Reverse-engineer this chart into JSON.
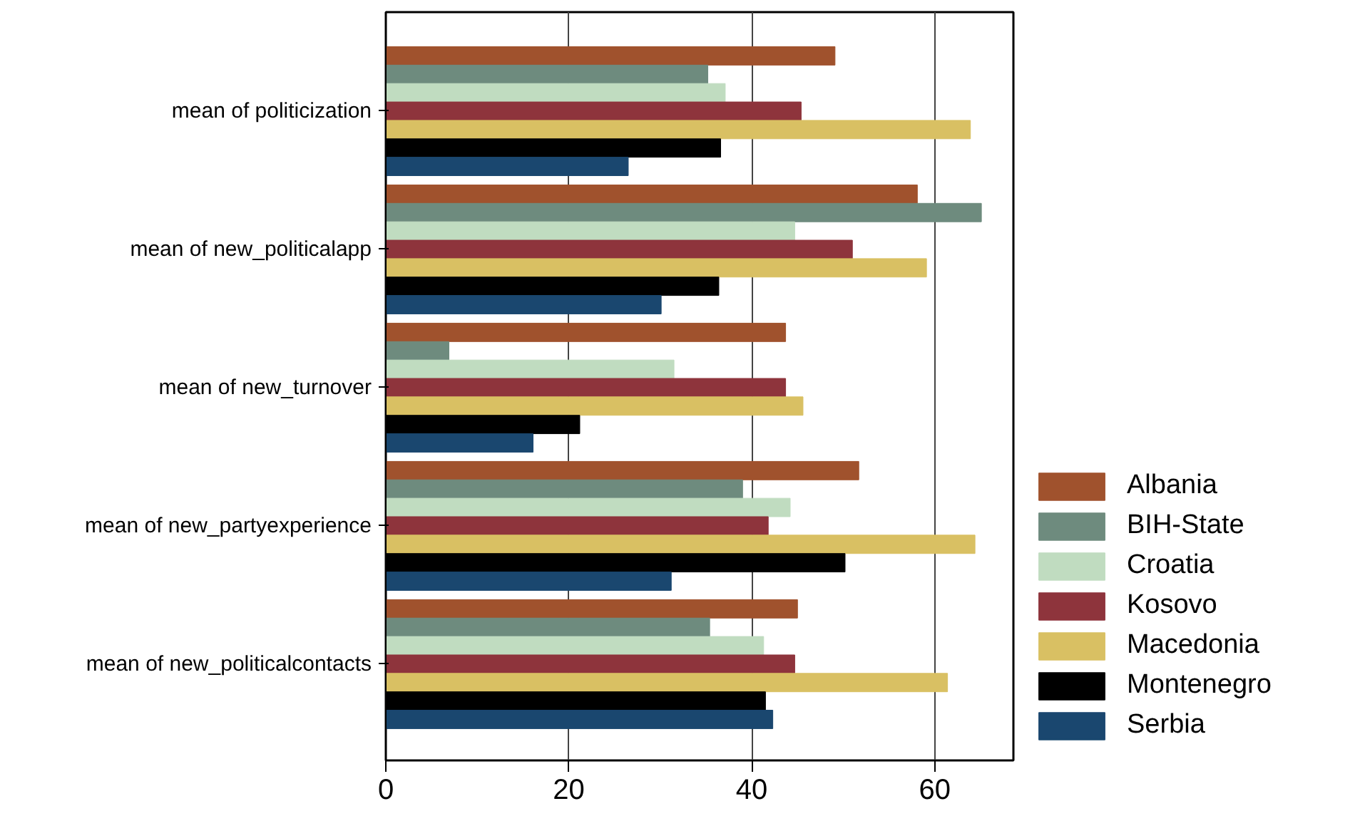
{
  "chart_data": {
    "type": "bar",
    "orientation": "horizontal",
    "categories": [
      "mean of politicization",
      "mean of new_politicalapp",
      "mean of new_turnover",
      "mean of new_partyexperience",
      "mean of new_politicalcontacts"
    ],
    "series": [
      {
        "name": "Albania",
        "color": "#a0522d",
        "values": [
          49.1,
          58.1,
          43.7,
          51.7,
          45.0
        ]
      },
      {
        "name": "BIH-State",
        "color": "#6e8b7e",
        "values": [
          35.2,
          65.1,
          6.9,
          39.0,
          35.4
        ]
      },
      {
        "name": "Croatia",
        "color": "#c0dcc0",
        "values": [
          37.1,
          44.7,
          31.5,
          44.2,
          41.3
        ]
      },
      {
        "name": "Kosovo",
        "color": "#8e343c",
        "values": [
          45.4,
          51.0,
          43.7,
          41.8,
          44.7
        ]
      },
      {
        "name": "Macedonia",
        "color": "#d9c063",
        "values": [
          63.9,
          59.1,
          45.6,
          64.4,
          61.4
        ]
      },
      {
        "name": "Montenegro",
        "color": "#000000",
        "values": [
          36.6,
          36.4,
          21.2,
          50.2,
          41.5
        ]
      },
      {
        "name": "Serbia",
        "color": "#1a476f",
        "values": [
          26.5,
          30.1,
          16.1,
          31.2,
          42.3
        ]
      }
    ],
    "xlim": [
      0,
      68.6
    ],
    "xticks": [
      0,
      20,
      40,
      60
    ],
    "grid": "x",
    "legend": "bottom right"
  }
}
